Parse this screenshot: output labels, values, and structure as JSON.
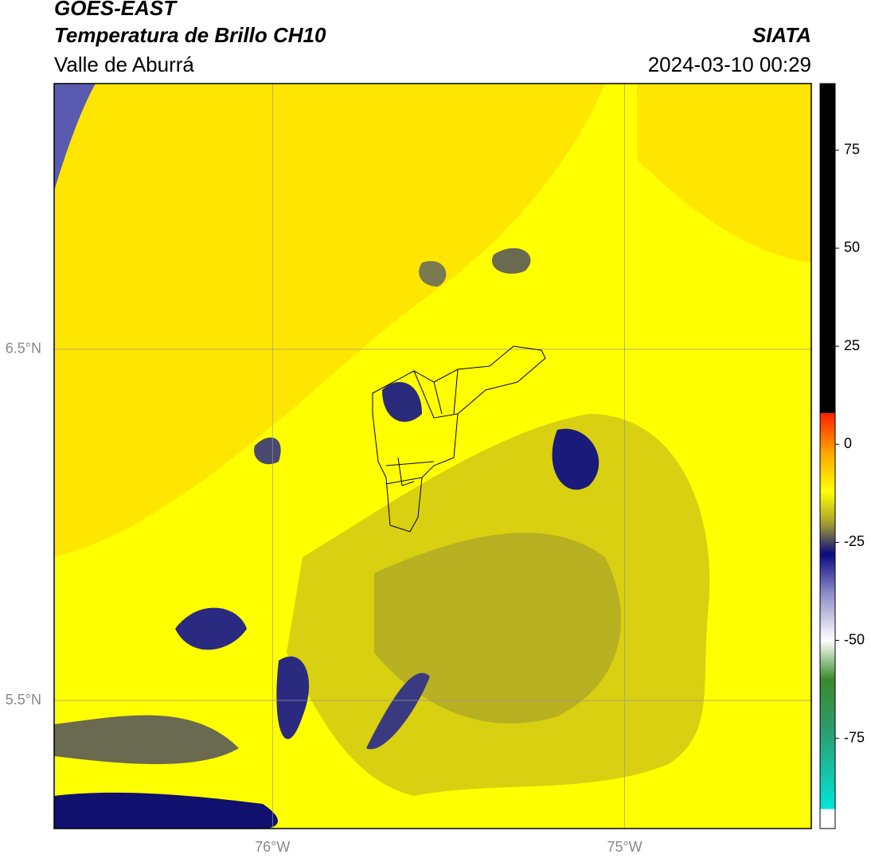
{
  "header": {
    "title": "GOES-EAST",
    "subtitle": "Temperatura de Brillo CH10",
    "region": "Valle de Aburrá",
    "source": "SIATA",
    "datetime": "2024-03-10 00:29"
  },
  "map": {
    "lon_range": [
      -76.62,
      -74.47
    ],
    "lat_range": [
      5.135,
      7.257
    ],
    "lon_ticks": [
      {
        "value": -76,
        "label": "76°W"
      },
      {
        "value": -75,
        "label": "75°W"
      }
    ],
    "lat_ticks": [
      {
        "value": 6.5,
        "label": "6.5°N"
      },
      {
        "value": 5.5,
        "label": "5.5°N"
      }
    ],
    "grid": true
  },
  "colorbar": {
    "lim": [
      -98,
      92
    ],
    "ticks": [
      -75,
      -50,
      -25,
      0,
      25,
      50,
      75
    ],
    "stops": [
      {
        "value": -98,
        "color": "#ffffff"
      },
      {
        "value": -93,
        "color": "#ffffff"
      },
      {
        "value": -93,
        "color": "#00e5d8"
      },
      {
        "value": -72,
        "color": "#2e9a6a"
      },
      {
        "value": -60,
        "color": "#3a8a2a"
      },
      {
        "value": -50,
        "color": "#ffffff"
      },
      {
        "value": -38,
        "color": "#8c8cc8"
      },
      {
        "value": -28,
        "color": "#0a0a80"
      },
      {
        "value": -20,
        "color": "#a8a030"
      },
      {
        "value": -12,
        "color": "#ffff00"
      },
      {
        "value": -2,
        "color": "#ffa500"
      },
      {
        "value": 8,
        "color": "#ff1e00"
      },
      {
        "value": 8,
        "color": "#000000"
      },
      {
        "value": 92,
        "color": "#000000"
      }
    ]
  }
}
